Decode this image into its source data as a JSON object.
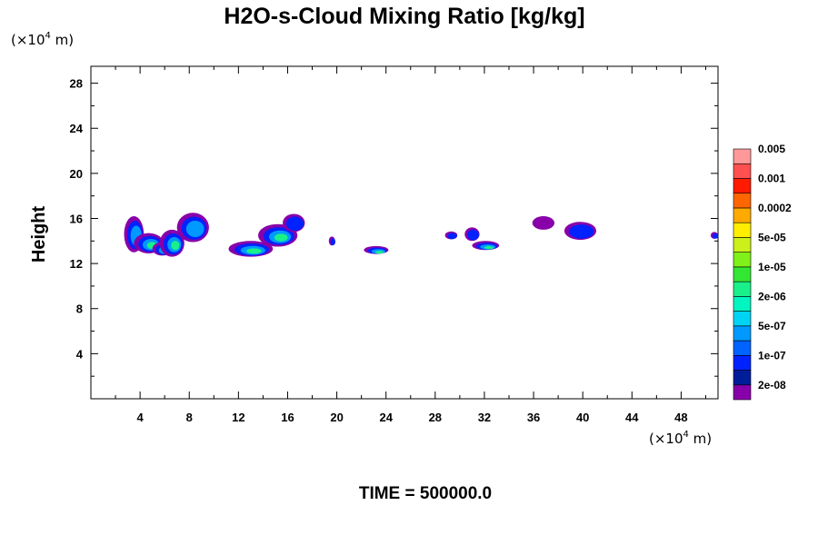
{
  "chart_data": {
    "type": "heatmap",
    "title": "H2O-s-Cloud Mixing Ratio [kg/kg]",
    "ylabel": "Height",
    "x_unit": "(×10",
    "x_unit_exp": "4",
    "x_unit_tail": " m)",
    "y_unit": "(×10",
    "y_unit_exp": "4",
    "y_unit_tail": " m)",
    "xlim": [
      0,
      51
    ],
    "ylim": [
      0,
      29.5
    ],
    "xticks": [
      4,
      8,
      12,
      16,
      20,
      24,
      28,
      32,
      36,
      40,
      44,
      48
    ],
    "yticks": [
      4,
      8,
      12,
      16,
      20,
      24,
      28
    ],
    "time_label": "TIME = 500000.0",
    "grid": false,
    "legend_placement": "right",
    "legend": {
      "colors": [
        "#8800aa",
        "#001d99",
        "#0022ff",
        "#0062ff",
        "#0099ff",
        "#00d4f5",
        "#00f5c0",
        "#1af08a",
        "#33e633",
        "#80f01a",
        "#ccf01a",
        "#ffee00",
        "#ffaa00",
        "#ff6600",
        "#ff1a00",
        "#ff5050",
        "#ff9999"
      ],
      "labels": [
        "2e-08",
        "1e-07",
        "5e-07",
        "2e-06",
        "1e-05",
        "5e-05",
        "0.0002",
        "0.001",
        "0.005"
      ]
    },
    "cloud_color_levels": {
      "outer": "#8800aa",
      "mid": "#0022ff",
      "inner": "#0099ff",
      "core": "#1af08a"
    },
    "cells": [
      {
        "x": 3.5,
        "y": 14.6,
        "rx": 0.8,
        "ry": 1.6,
        "level": 2
      },
      {
        "x": 4.7,
        "y": 13.8,
        "rx": 1.2,
        "ry": 0.9,
        "level": 3
      },
      {
        "x": 5.8,
        "y": 13.3,
        "rx": 0.8,
        "ry": 0.6,
        "level": 3
      },
      {
        "x": 6.6,
        "y": 13.8,
        "rx": 1.0,
        "ry": 1.2,
        "level": 3
      },
      {
        "x": 8.3,
        "y": 15.2,
        "rx": 1.3,
        "ry": 1.3,
        "level": 2
      },
      {
        "x": 13.0,
        "y": 13.3,
        "rx": 1.8,
        "ry": 0.7,
        "level": 3
      },
      {
        "x": 15.2,
        "y": 14.5,
        "rx": 1.6,
        "ry": 1.0,
        "level": 3
      },
      {
        "x": 16.5,
        "y": 15.6,
        "rx": 0.9,
        "ry": 0.8,
        "level": 1
      },
      {
        "x": 19.6,
        "y": 14.0,
        "rx": 0.25,
        "ry": 0.4,
        "level": 1
      },
      {
        "x": 23.2,
        "y": 13.2,
        "rx": 1.0,
        "ry": 0.35,
        "level": 3
      },
      {
        "x": 29.3,
        "y": 14.5,
        "rx": 0.5,
        "ry": 0.35,
        "level": 1
      },
      {
        "x": 31.0,
        "y": 14.6,
        "rx": 0.6,
        "ry": 0.6,
        "level": 1
      },
      {
        "x": 32.1,
        "y": 13.6,
        "rx": 1.1,
        "ry": 0.4,
        "level": 3
      },
      {
        "x": 36.8,
        "y": 15.6,
        "rx": 0.9,
        "ry": 0.6,
        "level": 0
      },
      {
        "x": 39.8,
        "y": 14.9,
        "rx": 1.3,
        "ry": 0.8,
        "level": 1
      },
      {
        "x": 50.7,
        "y": 14.5,
        "rx": 0.3,
        "ry": 0.3,
        "level": 1
      }
    ]
  }
}
